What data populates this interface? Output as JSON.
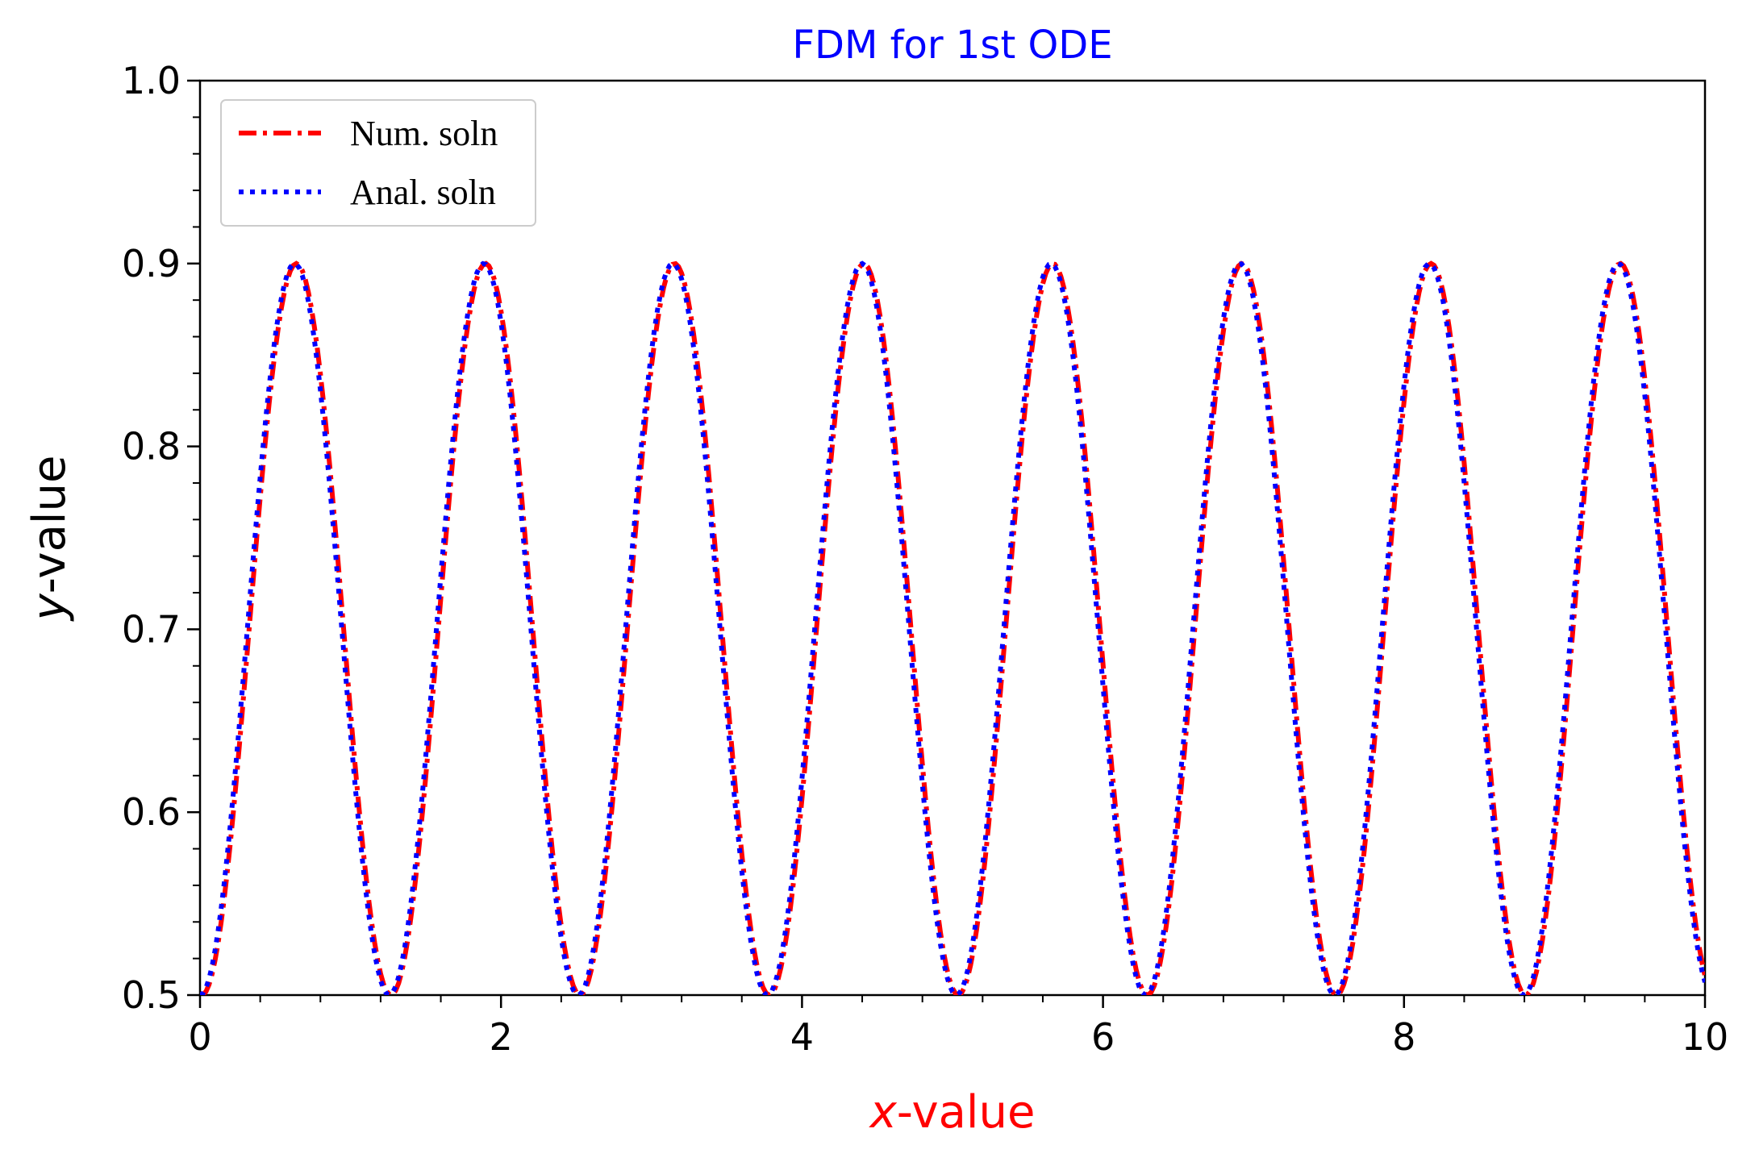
{
  "chart_data": {
    "type": "line",
    "title": "FDM for 1st ODE",
    "title_color": "#0000ff",
    "xlabel_var": "x",
    "xlabel_suffix": "-value",
    "xlabel_color": "#ff0000",
    "ylabel_var": "y",
    "ylabel_suffix": "-value",
    "ylabel_color": "#000000",
    "xlim": [
      0,
      10
    ],
    "ylim": [
      0.5,
      1.0
    ],
    "x_ticks": [
      "0",
      "2",
      "4",
      "6",
      "8",
      "10"
    ],
    "y_ticks": [
      "0.5",
      "0.6",
      "0.7",
      "0.8",
      "0.9",
      "1.0"
    ],
    "grid": false,
    "legend_position": "top-left",
    "series": [
      {
        "name": "Num. soln",
        "color": "#ff0000",
        "style": "dash-dot",
        "formula": "y = 0.7 - 0.2*cos(5*x)",
        "x_start": 0,
        "x_end": 10,
        "x_step": 0.02,
        "phase_shift": 0.012
      },
      {
        "name": "Anal. soln",
        "color": "#0000ff",
        "style": "dotted",
        "formula": "y = 0.7 - 0.2*cos(5*x)",
        "x_start": 0,
        "x_end": 10,
        "x_step": 0.02,
        "phase_shift": 0
      }
    ]
  }
}
